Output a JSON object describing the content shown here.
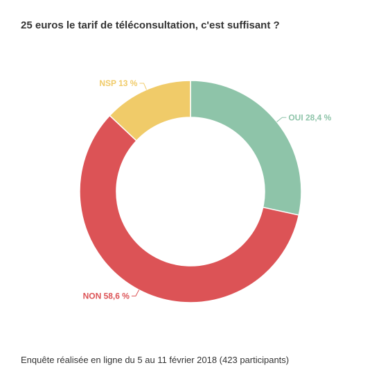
{
  "chart_data": {
    "type": "pie",
    "variant": "donut",
    "title": "25 euros le tarif de téléconsultation, c'est suffisant ?",
    "slices": [
      {
        "label": "OUI 28,4 %",
        "value": 28.4,
        "color": "#8ec4a9"
      },
      {
        "label": "NON 58,6 %",
        "value": 58.6,
        "color": "#dc5356"
      },
      {
        "label": "NSP 13 %",
        "value": 13,
        "color": "#f0cb69"
      }
    ]
  },
  "footnote": "Enquête réalisée en ligne du 5 au 11 février 2018  (423 participants)"
}
